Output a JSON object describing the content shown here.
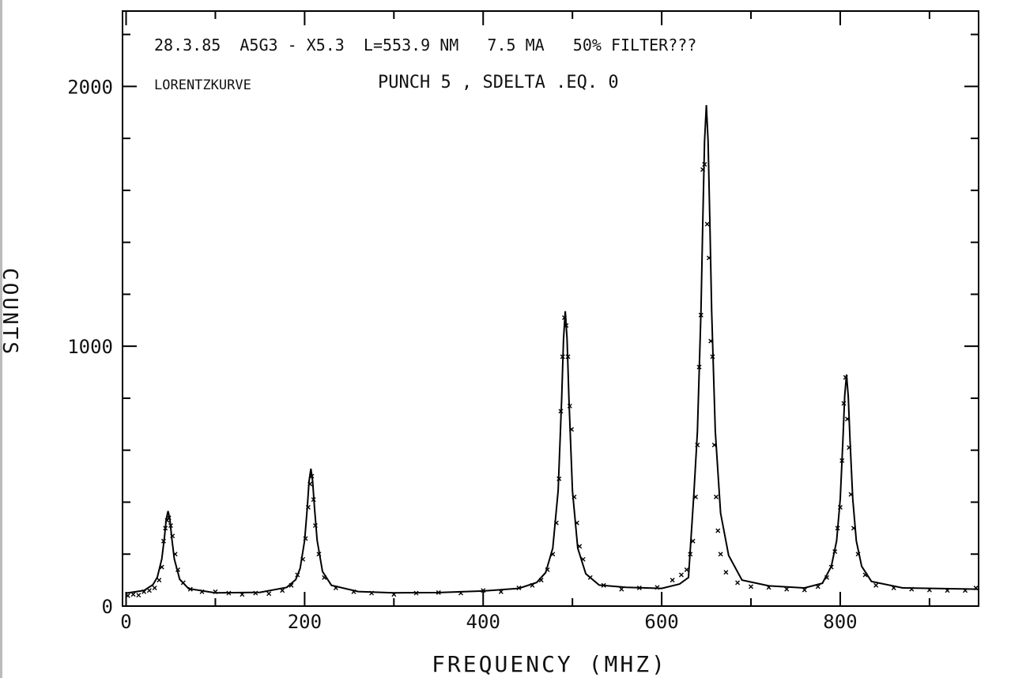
{
  "chart_data": {
    "type": "line",
    "annotations": [
      "28.3.85  A5G3 - X5.3  L=553.9 NM   7.5 MA   50% FILTER???",
      "LORENTZKURVE",
      "PUNCH 5 , SDELTA .EQ. 0"
    ],
    "x_label": "FREQUENCY (MHZ)",
    "y_label": "COUNTS",
    "xlim": [
      -4,
      955
    ],
    "ylim": [
      0,
      2290
    ],
    "xticks": [
      0,
      200,
      400,
      600,
      800
    ],
    "xminorticks": [
      100,
      300,
      500,
      700,
      900
    ],
    "yticks": [
      0,
      1000,
      2000
    ],
    "yminorticks": [
      200,
      400,
      600,
      800,
      1200,
      1400,
      1600,
      1800,
      2200
    ],
    "series": [
      {
        "type": "line",
        "color": "#000000",
        "x": [
          0,
          20,
          30,
          35,
          40,
          43,
          45,
          47,
          49,
          51,
          54,
          60,
          70,
          100,
          150,
          180,
          190,
          195,
          200,
          203,
          205,
          207,
          209,
          211,
          214,
          220,
          230,
          260,
          300,
          350,
          400,
          440,
          460,
          470,
          478,
          484,
          488,
          490,
          492,
          494,
          496,
          500,
          506,
          515,
          530,
          560,
          600,
          620,
          630,
          636,
          640,
          644,
          646,
          648,
          650,
          652,
          654,
          656,
          660,
          666,
          675,
          690,
          720,
          760,
          780,
          790,
          796,
          800,
          803,
          805,
          807,
          809,
          811,
          814,
          818,
          824,
          835,
          870,
          955
        ],
        "values": [
          50,
          60,
          82,
          111,
          182,
          267,
          334,
          366,
          334,
          267,
          182,
          103,
          67,
          51,
          53,
          72,
          102,
          145,
          253,
          381,
          481,
          529,
          481,
          381,
          253,
          133,
          80,
          56,
          51,
          52,
          58,
          68,
          91,
          129,
          223,
          444,
          802,
          1027,
          1135,
          1027,
          802,
          444,
          223,
          124,
          81,
          72,
          68,
          85,
          110,
          432,
          673,
          1136,
          1468,
          1788,
          1928,
          1788,
          1468,
          1136,
          673,
          358,
          195,
          100,
          78,
          70,
          88,
          153,
          251,
          413,
          635,
          808,
          891,
          808,
          635,
          413,
          251,
          153,
          95,
          70,
          65
        ]
      },
      {
        "type": "scatter",
        "color": "#000000",
        "x": [
          2,
          8,
          14,
          20,
          26,
          32,
          37,
          40,
          42,
          44,
          46,
          48,
          50,
          52,
          55,
          58,
          64,
          72,
          85,
          100,
          115,
          130,
          145,
          160,
          175,
          185,
          192,
          198,
          201,
          204,
          206,
          208,
          210,
          212,
          216,
          222,
          235,
          255,
          275,
          300,
          325,
          350,
          375,
          400,
          420,
          440,
          455,
          465,
          472,
          478,
          482,
          485,
          487,
          489,
          491,
          493,
          495,
          497,
          499,
          502,
          505,
          508,
          512,
          520,
          535,
          555,
          575,
          595,
          612,
          622,
          628,
          632,
          635,
          638,
          640,
          642,
          644,
          646,
          648,
          651,
          653,
          655,
          657,
          659,
          661,
          663,
          666,
          672,
          685,
          700,
          720,
          740,
          760,
          775,
          785,
          790,
          794,
          797,
          800,
          802,
          804,
          806,
          808,
          810,
          812,
          815,
          820,
          828,
          840,
          860,
          880,
          900,
          920,
          940,
          952
        ],
        "values": [
          40,
          45,
          42,
          55,
          60,
          70,
          100,
          150,
          250,
          300,
          330,
          340,
          310,
          270,
          200,
          140,
          90,
          65,
          55,
          55,
          50,
          45,
          50,
          48,
          60,
          80,
          120,
          180,
          260,
          380,
          470,
          500,
          410,
          310,
          200,
          110,
          70,
          55,
          50,
          45,
          50,
          52,
          50,
          60,
          55,
          70,
          80,
          100,
          140,
          200,
          320,
          490,
          750,
          960,
          1110,
          1080,
          960,
          770,
          680,
          420,
          320,
          230,
          180,
          110,
          80,
          65,
          70,
          72,
          100,
          120,
          140,
          200,
          250,
          420,
          620,
          920,
          1120,
          1680,
          1700,
          1470,
          1340,
          1020,
          960,
          620,
          420,
          290,
          200,
          130,
          90,
          75,
          72,
          65,
          62,
          75,
          110,
          150,
          210,
          300,
          380,
          560,
          780,
          880,
          720,
          610,
          430,
          300,
          200,
          120,
          80,
          70,
          65,
          62,
          60,
          60,
          70
        ]
      }
    ]
  }
}
